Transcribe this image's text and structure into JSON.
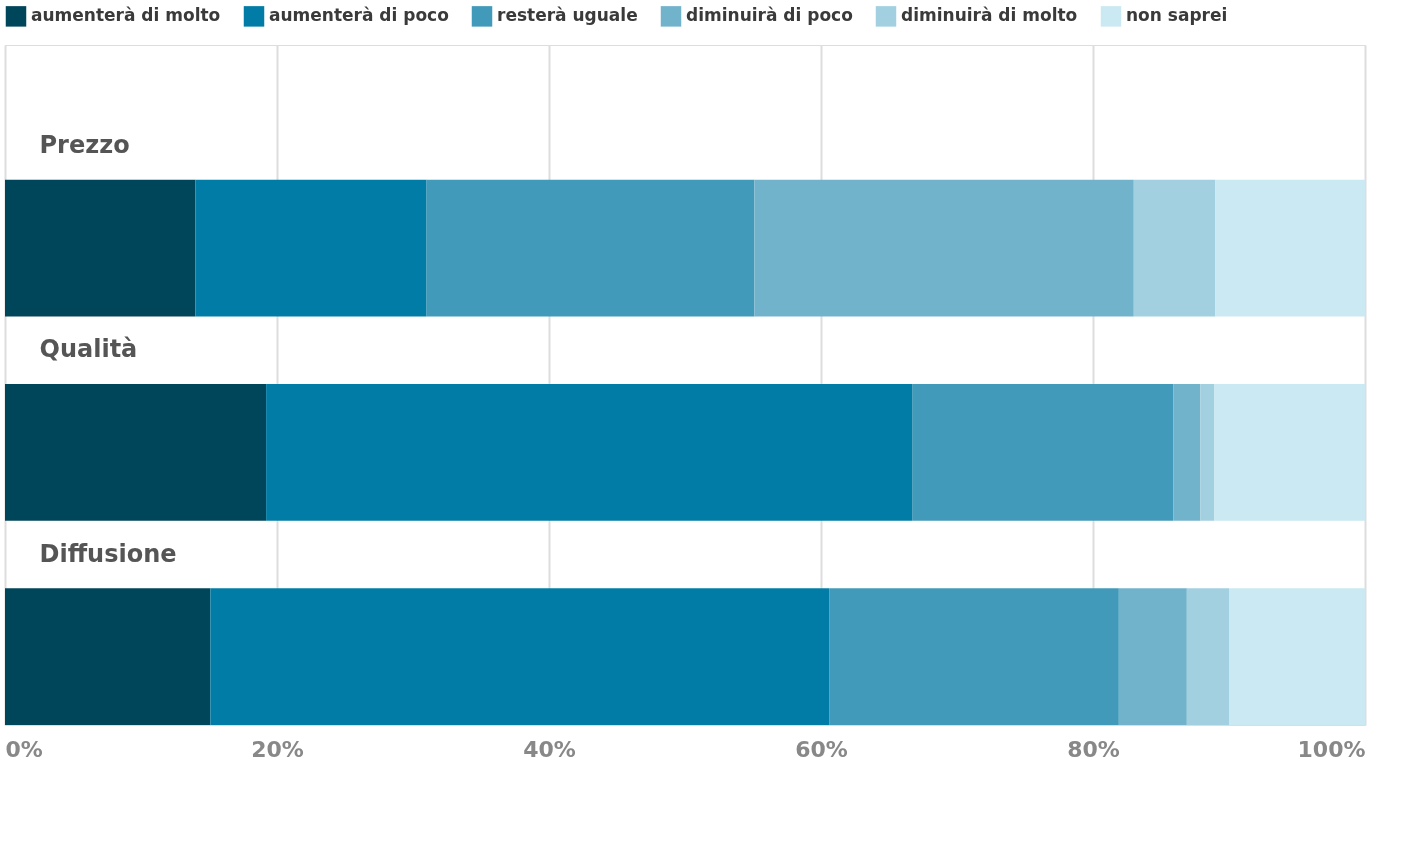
{
  "chart_data": {
    "type": "bar",
    "orientation": "horizontal",
    "stacked": true,
    "categories": [
      "Prezzo",
      "Qualità",
      "Diffusione"
    ],
    "series": [
      {
        "name": "aumenterà di molto",
        "color": "#00465a",
        "values": [
          14,
          19.2,
          15.1
        ]
      },
      {
        "name": "aumenterà di poco",
        "color": "#007ca6",
        "values": [
          17,
          47.5,
          45.5
        ]
      },
      {
        "name": "resterà uguale",
        "color": "#419ab9",
        "values": [
          24.1,
          19.2,
          21.3
        ]
      },
      {
        "name": "diminuirà di poco",
        "color": "#72b3cc",
        "values": [
          27.9,
          2,
          5
        ]
      },
      {
        "name": "diminuirà di molto",
        "color": "#a2d0e1",
        "values": [
          6,
          1,
          3.1
        ]
      },
      {
        "name": "non saprei",
        "color": "#cbe9f2",
        "values": [
          11,
          11.1,
          10
        ]
      }
    ],
    "xlim": [
      0,
      100
    ],
    "xticks": [
      {
        "value": 0,
        "label": "0%"
      },
      {
        "value": 20,
        "label": "20%"
      },
      {
        "value": 40,
        "label": "40%"
      },
      {
        "value": 60,
        "label": "60%"
      },
      {
        "value": 80,
        "label": "80%"
      },
      {
        "value": 100,
        "label": "100%"
      }
    ],
    "grid": "x",
    "legend": "top"
  }
}
